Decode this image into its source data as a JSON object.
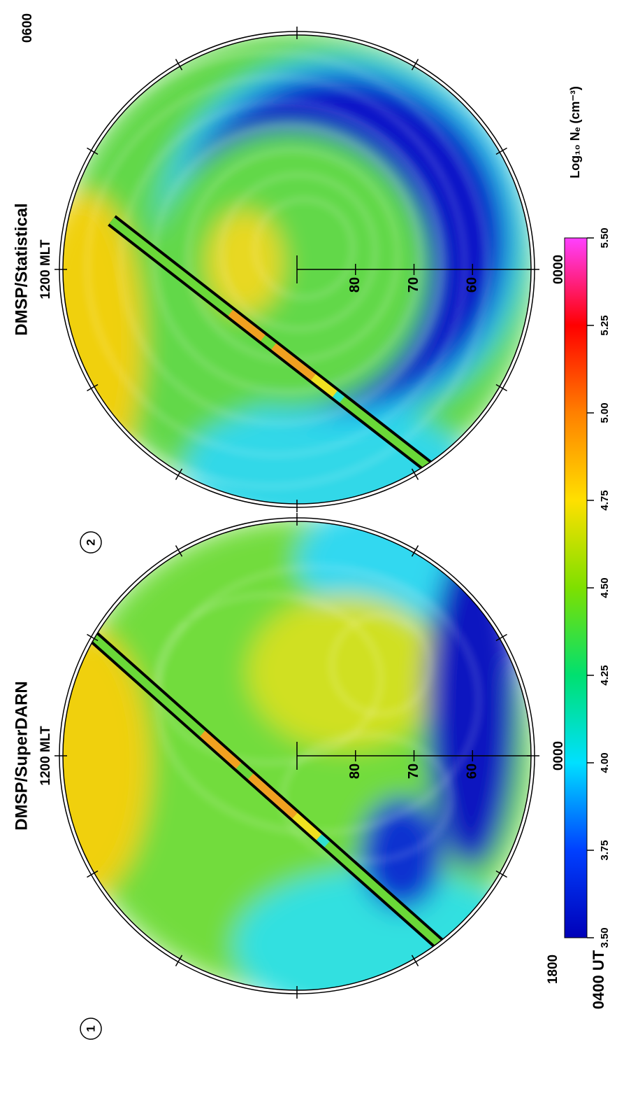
{
  "time_label": "0400 UT",
  "chart_data": [
    {
      "type": "polar",
      "panel": "1",
      "title": "DMSP/SuperDARN",
      "subtitle": "1200 MLT",
      "bottom_label": "0000",
      "left_label": "1800",
      "rlim": [
        90,
        50
      ],
      "rticks": [
        80,
        70,
        60
      ]
    },
    {
      "type": "polar",
      "panel": "2",
      "title": "DMSP/Statistical",
      "subtitle": "1200 MLT",
      "bottom_label": "0000",
      "right_label": "0600",
      "rlim": [
        90,
        50
      ],
      "rticks": [
        80,
        70,
        60
      ]
    }
  ],
  "colorbar": {
    "label": "Log₁₀ Nₑ (cm⁻³)",
    "lim": [
      3.5,
      5.5
    ],
    "ticks": [
      {
        "value": 3.5,
        "label": "3.50"
      },
      {
        "value": 3.75,
        "label": "3.75"
      },
      {
        "value": 4.0,
        "label": "4.00"
      },
      {
        "value": 4.25,
        "label": "4.25"
      },
      {
        "value": 4.5,
        "label": "4.50"
      },
      {
        "value": 4.75,
        "label": "4.75"
      },
      {
        "value": 5.0,
        "label": "5.00"
      },
      {
        "value": 5.25,
        "label": "5.25"
      },
      {
        "value": 5.5,
        "label": "5.50"
      }
    ]
  }
}
